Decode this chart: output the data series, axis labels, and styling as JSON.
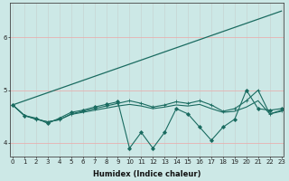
{
  "title": "",
  "xlabel": "Humidex (Indice chaleur)",
  "bg_color": "#cce8e6",
  "line_color": "#1a6b60",
  "grid_color_h": "#e8b0b0",
  "grid_color_v": "#c8d8d6",
  "x_min": 0,
  "x_max": 23,
  "y_min": 3.75,
  "y_max": 6.65,
  "series": [
    {
      "x": [
        0,
        1,
        2,
        3,
        4,
        5,
        6,
        7,
        8,
        9,
        10,
        11,
        12,
        13,
        14,
        15,
        16,
        17,
        18,
        19,
        20,
        21,
        22,
        23
      ],
      "y": [
        4.72,
        4.52,
        4.47,
        4.37,
        4.47,
        4.58,
        4.62,
        4.68,
        4.73,
        4.78,
        3.9,
        4.2,
        3.9,
        4.2,
        4.65,
        4.55,
        4.3,
        4.05,
        4.3,
        4.45,
        5.0,
        4.65,
        4.62,
        4.65
      ],
      "marker": "D",
      "ms": 2.0,
      "lw": 0.8
    },
    {
      "x": [
        0,
        23
      ],
      "y": [
        4.72,
        6.5
      ],
      "marker": null,
      "ms": 0,
      "lw": 0.9
    },
    {
      "x": [
        0,
        1,
        2,
        3,
        4,
        5,
        6,
        7,
        8,
        9,
        10,
        11,
        12,
        13,
        14,
        15,
        16,
        17,
        18,
        19,
        20,
        21,
        22,
        23
      ],
      "y": [
        4.72,
        4.52,
        4.45,
        4.4,
        4.44,
        4.55,
        4.6,
        4.65,
        4.7,
        4.75,
        4.8,
        4.75,
        4.68,
        4.72,
        4.78,
        4.75,
        4.8,
        4.72,
        4.6,
        4.65,
        4.8,
        5.0,
        4.55,
        4.62
      ],
      "marker": "+",
      "ms": 3.5,
      "lw": 0.8
    },
    {
      "x": [
        0,
        1,
        2,
        3,
        4,
        5,
        6,
        7,
        8,
        9,
        10,
        11,
        12,
        13,
        14,
        15,
        16,
        17,
        18,
        19,
        20,
        21,
        22,
        23
      ],
      "y": [
        4.72,
        4.52,
        4.45,
        4.4,
        4.44,
        4.54,
        4.58,
        4.62,
        4.66,
        4.7,
        4.73,
        4.7,
        4.65,
        4.68,
        4.72,
        4.7,
        4.73,
        4.65,
        4.58,
        4.6,
        4.68,
        4.8,
        4.55,
        4.6
      ],
      "marker": null,
      "ms": 0,
      "lw": 0.8
    }
  ],
  "yticks": [
    4,
    5,
    6
  ],
  "xtick_labels": [
    "0",
    "1",
    "2",
    "3",
    "4",
    "5",
    "6",
    "7",
    "8",
    "9",
    "10",
    "11",
    "12",
    "13",
    "14",
    "15",
    "16",
    "17",
    "18",
    "19",
    "20",
    "21",
    "22",
    "23"
  ],
  "tick_fontsize": 5.0,
  "label_fontsize": 6.0
}
